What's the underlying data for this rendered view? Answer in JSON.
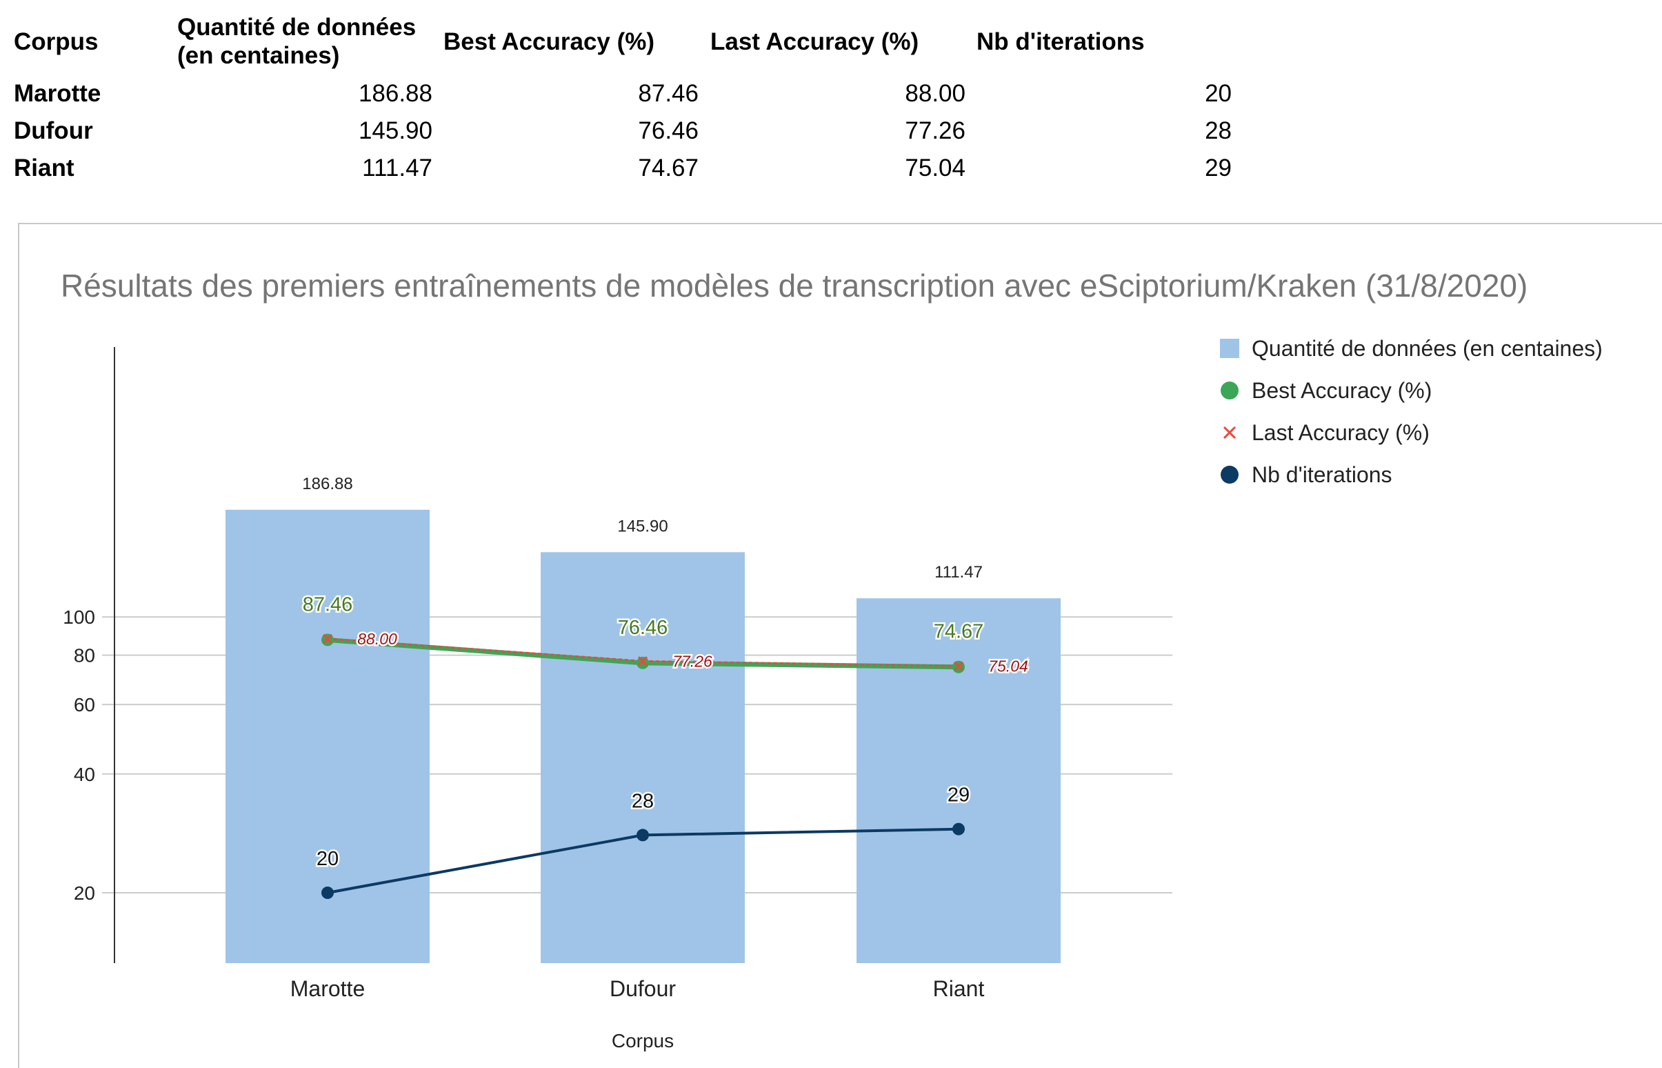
{
  "table": {
    "headers": [
      "Corpus",
      "Quantité de données\n(en centaines)",
      "Best Accuracy (%)",
      "Last Accuracy (%)",
      "Nb d'iterations"
    ],
    "rows": [
      {
        "corpus": "Marotte",
        "quantite": "186.88",
        "best": "87.46",
        "last": "88.00",
        "iter": "20"
      },
      {
        "corpus": "Dufour",
        "quantite": "145.90",
        "best": "76.46",
        "last": "77.26",
        "iter": "28"
      },
      {
        "corpus": "Riant",
        "quantite": "111.47",
        "best": "74.67",
        "last": "75.04",
        "iter": "29"
      }
    ]
  },
  "chart_data": {
    "type": "bar",
    "title": "Résultats des premiers entraînements de modèles de transcription avec eSciptorium/Kraken (31/8/2020)",
    "xlabel": "Corpus",
    "ylabel": "",
    "y_scale": "log",
    "yticks": [
      20,
      40,
      60,
      80,
      100
    ],
    "grid": true,
    "legend_position": "right",
    "categories": [
      "Marotte",
      "Dufour",
      "Riant"
    ],
    "series": [
      {
        "name": "Quantité de données (en centaines)",
        "kind": "bar",
        "color": "#a0c4e8",
        "values": [
          186.88,
          145.9,
          111.47
        ],
        "labels": [
          "186.88",
          "145.90",
          "111.47"
        ]
      },
      {
        "name": "Best Accuracy (%)",
        "kind": "line",
        "marker": "circle",
        "color": "#3aa757",
        "values": [
          87.46,
          76.46,
          74.67
        ],
        "labels": [
          "87.46",
          "76.46",
          "74.67"
        ]
      },
      {
        "name": "Last Accuracy (%)",
        "kind": "line",
        "marker": "x",
        "color": "#e84a3f",
        "values": [
          88.0,
          77.26,
          75.04
        ],
        "labels": [
          "88.00",
          "77.26",
          "75.04"
        ]
      },
      {
        "name": "Nb d'iterations",
        "kind": "line",
        "marker": "circle",
        "color": "#0b3a63",
        "values": [
          20,
          28,
          29
        ],
        "labels": [
          "20",
          "28",
          "29"
        ]
      }
    ]
  }
}
